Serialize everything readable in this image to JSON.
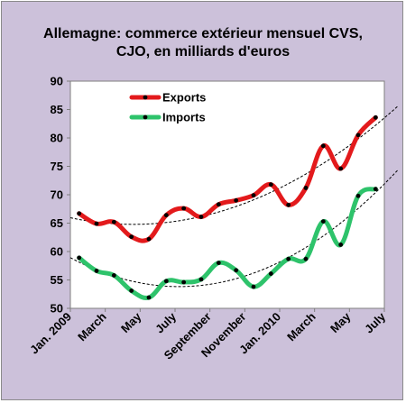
{
  "chart_data": {
    "type": "line",
    "title": "Allemagne: commerce extérieur mensuel CVS, CJO, en milliards d'euros",
    "title_lines": [
      "Allemagne: commerce extérieur mensuel CVS,",
      "CJO, en milliards d'euros"
    ],
    "x": [
      "Jan. 2009",
      "Feb. 2009",
      "Mar. 2009",
      "Apr. 2009",
      "May 2009",
      "Jun. 2009",
      "Jul. 2009",
      "Aug. 2009",
      "Sep. 2009",
      "Oct. 2009",
      "Nov. 2009",
      "Dec. 2009",
      "Jan. 2010",
      "Feb. 2010",
      "Mar. 2010",
      "Apr. 2010",
      "May 2010",
      "Jun. 2010"
    ],
    "x_tick_labels": [
      "Jan. 2009",
      "March",
      "May",
      "July",
      "September",
      "November",
      "Jan. 2010",
      "March",
      "May",
      "July"
    ],
    "x_tick_index": [
      0,
      2,
      4,
      6,
      8,
      10,
      12,
      14,
      16,
      18
    ],
    "series": [
      {
        "name": "Exports",
        "color": "#e31a1c",
        "values": [
          66.7,
          64.9,
          65.2,
          62.6,
          62.2,
          66.4,
          67.6,
          66.1,
          68.3,
          69.0,
          69.9,
          71.8,
          68.2,
          71.2,
          78.6,
          74.6,
          80.5,
          83.6
        ],
        "trend": "polynomial"
      },
      {
        "name": "Imports",
        "color": "#2ec36b",
        "values": [
          58.9,
          56.6,
          55.8,
          53.1,
          51.9,
          54.8,
          54.6,
          55.1,
          58.0,
          56.7,
          53.8,
          56.1,
          58.7,
          58.7,
          65.3,
          61.2,
          69.8,
          71.0
        ],
        "trend": "polynomial"
      }
    ],
    "ylim": [
      50,
      90
    ],
    "yticks": [
      50,
      55,
      60,
      65,
      70,
      75,
      80,
      85,
      90
    ],
    "grid": false,
    "legend": "top-left",
    "marker_color": "#000000",
    "trendline_color": "#000000",
    "background_color": "#ccc1da",
    "plot_background": "#ffffff"
  }
}
